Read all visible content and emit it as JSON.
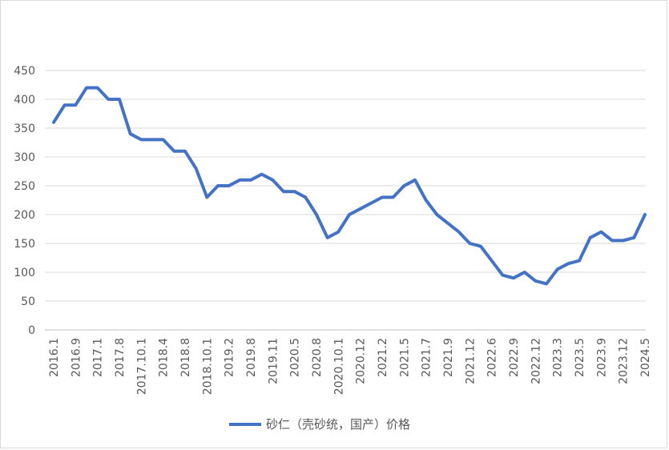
{
  "chart_data": {
    "type": "line",
    "title": "",
    "xlabel": "",
    "ylabel": "",
    "ylim": [
      0,
      450
    ],
    "yticks": [
      0,
      50,
      100,
      150,
      200,
      250,
      300,
      350,
      400,
      450
    ],
    "grid": true,
    "legend_position": "bottom",
    "series_color": "#4472c4",
    "x_tick_labels": [
      "2016.1",
      "2016.9",
      "2017.1",
      "2017.8",
      "2017.10.1",
      "2018.4",
      "2018.8",
      "2018.10.1",
      "2019.2",
      "2019.8",
      "2019.11",
      "2020.5",
      "2020.8",
      "2020.10.1",
      "2020.12",
      "2021.2",
      "2021.5",
      "2021.7",
      "2021.9",
      "2021.12",
      "2022.6",
      "2022.9",
      "2022.12",
      "2023.3",
      "2023.5",
      "2023.9",
      "2023.12",
      "2024.5"
    ],
    "series": [
      {
        "name": "砂仁（壳砂统，国产）价格",
        "values": [
          360,
          390,
          390,
          420,
          420,
          400,
          400,
          340,
          330,
          330,
          330,
          310,
          310,
          280,
          230,
          250,
          250,
          260,
          260,
          270,
          260,
          240,
          240,
          230,
          200,
          160,
          170,
          200,
          210,
          220,
          230,
          230,
          250,
          260,
          225,
          200,
          185,
          170,
          150,
          145,
          120,
          95,
          90,
          100,
          85,
          80,
          105,
          115,
          120,
          160,
          170,
          155,
          155,
          160,
          200
        ]
      }
    ]
  }
}
